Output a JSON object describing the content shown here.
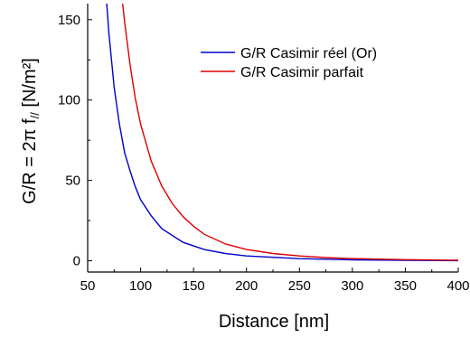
{
  "chart_data": {
    "type": "line",
    "xlabel": "Distance [nm]",
    "ylabel": {
      "prefix": "G/R = 2",
      "pi": "π",
      "f": " f",
      "subscript": "//",
      "unit": " [N/m²]"
    },
    "xlim": [
      50,
      400
    ],
    "ylim": [
      -7,
      160
    ],
    "x_ticks": [
      50,
      100,
      150,
      200,
      250,
      300,
      350,
      400
    ],
    "y_ticks": [
      0,
      50,
      100,
      150
    ],
    "grid": false,
    "legend_position": "top-right",
    "series": [
      {
        "name": "G/R Casimir réel (Or)",
        "color": "#0000cc",
        "points": [
          [
            68,
            160
          ],
          [
            70,
            142
          ],
          [
            75,
            108
          ],
          [
            80,
            85
          ],
          [
            85,
            67
          ],
          [
            90,
            56
          ],
          [
            95,
            46
          ],
          [
            100,
            38
          ],
          [
            110,
            28
          ],
          [
            120,
            20
          ],
          [
            140,
            11.5
          ],
          [
            160,
            7
          ],
          [
            180,
            4.5
          ],
          [
            200,
            3
          ],
          [
            250,
            1.3
          ],
          [
            300,
            0.6
          ],
          [
            350,
            0.3
          ],
          [
            400,
            0.1
          ]
        ]
      },
      {
        "name": "G/R Casimir parfait",
        "color": "#dd0000",
        "points": [
          [
            83,
            160
          ],
          [
            85,
            148
          ],
          [
            90,
            122
          ],
          [
            95,
            101
          ],
          [
            100,
            85
          ],
          [
            110,
            62
          ],
          [
            120,
            46.5
          ],
          [
            130,
            35.5
          ],
          [
            140,
            27.5
          ],
          [
            150,
            21.5
          ],
          [
            160,
            16.5
          ],
          [
            180,
            10.5
          ],
          [
            200,
            7
          ],
          [
            225,
            4.5
          ],
          [
            250,
            3
          ],
          [
            275,
            2
          ],
          [
            300,
            1.4
          ],
          [
            350,
            0.7
          ],
          [
            400,
            0.35
          ]
        ]
      }
    ]
  }
}
